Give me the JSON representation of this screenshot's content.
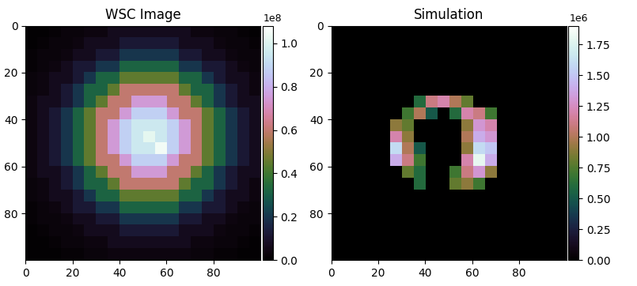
{
  "chart_data": [
    {
      "type": "heatmap",
      "title": "WSC Image",
      "color": "cubehelix",
      "xlim": [
        0,
        100
      ],
      "ylim": [
        100,
        0
      ],
      "xticks": [
        0,
        20,
        40,
        60,
        80
      ],
      "yticks": [
        0,
        20,
        40,
        60,
        80
      ],
      "colorbar_range": [
        0,
        1.08
      ],
      "colorbar_ticks": [
        0.0,
        0.2,
        0.4,
        0.6,
        0.8,
        1.0
      ],
      "colorbar_offset": "1e8",
      "cells": [
        [
          0.01,
          0.01,
          0.02,
          0.03,
          0.03,
          0.04,
          0.04,
          0.07,
          0.07,
          0.07,
          0.07,
          0.07,
          0.07,
          0.07,
          0.04,
          0.04,
          0.03,
          0.03,
          0.02,
          0.01
        ],
        [
          0.01,
          0.02,
          0.03,
          0.03,
          0.04,
          0.07,
          0.07,
          0.07,
          0.12,
          0.12,
          0.12,
          0.12,
          0.12,
          0.07,
          0.07,
          0.07,
          0.04,
          0.03,
          0.03,
          0.02
        ],
        [
          0.02,
          0.03,
          0.03,
          0.04,
          0.07,
          0.07,
          0.12,
          0.12,
          0.2,
          0.2,
          0.2,
          0.2,
          0.2,
          0.12,
          0.12,
          0.07,
          0.07,
          0.04,
          0.03,
          0.03
        ],
        [
          0.02,
          0.03,
          0.04,
          0.07,
          0.12,
          0.12,
          0.2,
          0.2,
          0.32,
          0.32,
          0.32,
          0.32,
          0.32,
          0.2,
          0.2,
          0.12,
          0.12,
          0.07,
          0.04,
          0.03
        ],
        [
          0.03,
          0.04,
          0.07,
          0.07,
          0.12,
          0.2,
          0.32,
          0.32,
          0.45,
          0.45,
          0.45,
          0.45,
          0.45,
          0.32,
          0.32,
          0.2,
          0.12,
          0.07,
          0.07,
          0.04
        ],
        [
          0.03,
          0.04,
          0.07,
          0.12,
          0.2,
          0.32,
          0.32,
          0.45,
          0.6,
          0.6,
          0.6,
          0.6,
          0.6,
          0.45,
          0.32,
          0.32,
          0.2,
          0.12,
          0.07,
          0.04
        ],
        [
          0.04,
          0.07,
          0.07,
          0.12,
          0.2,
          0.32,
          0.45,
          0.6,
          0.6,
          0.75,
          0.75,
          0.75,
          0.6,
          0.6,
          0.45,
          0.32,
          0.2,
          0.12,
          0.07,
          0.07
        ],
        [
          0.04,
          0.07,
          0.12,
          0.2,
          0.32,
          0.45,
          0.6,
          0.6,
          0.75,
          0.88,
          0.88,
          0.88,
          0.75,
          0.6,
          0.6,
          0.45,
          0.32,
          0.2,
          0.12,
          0.07
        ],
        [
          0.04,
          0.07,
          0.12,
          0.2,
          0.32,
          0.45,
          0.6,
          0.75,
          0.88,
          0.95,
          0.95,
          0.95,
          0.88,
          0.75,
          0.6,
          0.45,
          0.32,
          0.2,
          0.12,
          0.07
        ],
        [
          0.04,
          0.07,
          0.12,
          0.2,
          0.32,
          0.45,
          0.6,
          0.75,
          0.88,
          0.95,
          1.02,
          0.95,
          0.88,
          0.75,
          0.6,
          0.45,
          0.32,
          0.2,
          0.12,
          0.07
        ],
        [
          0.04,
          0.07,
          0.12,
          0.2,
          0.32,
          0.45,
          0.6,
          0.75,
          0.88,
          0.95,
          0.95,
          1.05,
          0.88,
          0.75,
          0.6,
          0.45,
          0.32,
          0.2,
          0.12,
          0.07
        ],
        [
          0.04,
          0.07,
          0.12,
          0.2,
          0.32,
          0.45,
          0.6,
          0.6,
          0.75,
          0.88,
          0.88,
          0.88,
          0.75,
          0.6,
          0.6,
          0.45,
          0.32,
          0.2,
          0.12,
          0.07
        ],
        [
          0.04,
          0.07,
          0.07,
          0.12,
          0.2,
          0.32,
          0.45,
          0.6,
          0.6,
          0.75,
          0.75,
          0.75,
          0.6,
          0.6,
          0.45,
          0.32,
          0.2,
          0.12,
          0.07,
          0.07
        ],
        [
          0.03,
          0.04,
          0.07,
          0.12,
          0.2,
          0.32,
          0.32,
          0.45,
          0.6,
          0.6,
          0.6,
          0.6,
          0.6,
          0.45,
          0.32,
          0.32,
          0.2,
          0.12,
          0.07,
          0.04
        ],
        [
          0.03,
          0.04,
          0.07,
          0.07,
          0.12,
          0.2,
          0.32,
          0.32,
          0.45,
          0.45,
          0.45,
          0.45,
          0.45,
          0.32,
          0.32,
          0.2,
          0.12,
          0.07,
          0.07,
          0.04
        ],
        [
          0.02,
          0.03,
          0.04,
          0.07,
          0.12,
          0.12,
          0.2,
          0.2,
          0.32,
          0.32,
          0.32,
          0.32,
          0.32,
          0.2,
          0.2,
          0.12,
          0.12,
          0.07,
          0.04,
          0.03
        ],
        [
          0.02,
          0.03,
          0.03,
          0.04,
          0.07,
          0.07,
          0.12,
          0.12,
          0.2,
          0.2,
          0.2,
          0.2,
          0.2,
          0.12,
          0.12,
          0.07,
          0.07,
          0.04,
          0.03,
          0.03
        ],
        [
          0.01,
          0.02,
          0.03,
          0.03,
          0.04,
          0.07,
          0.07,
          0.07,
          0.12,
          0.12,
          0.12,
          0.12,
          0.12,
          0.07,
          0.07,
          0.07,
          0.04,
          0.03,
          0.03,
          0.02
        ],
        [
          0.01,
          0.01,
          0.02,
          0.03,
          0.03,
          0.04,
          0.04,
          0.07,
          0.07,
          0.07,
          0.07,
          0.07,
          0.07,
          0.07,
          0.04,
          0.04,
          0.03,
          0.03,
          0.02,
          0.01
        ],
        [
          0.01,
          0.01,
          0.01,
          0.02,
          0.02,
          0.03,
          0.03,
          0.04,
          0.04,
          0.04,
          0.04,
          0.04,
          0.04,
          0.04,
          0.03,
          0.03,
          0.02,
          0.02,
          0.01,
          0.01
        ]
      ]
    },
    {
      "type": "heatmap",
      "title": "Simulation",
      "color": "cubehelix",
      "xlim": [
        0,
        100
      ],
      "ylim": [
        100,
        0
      ],
      "xticks": [
        0,
        20,
        40,
        60,
        80
      ],
      "yticks": [
        0,
        20,
        40,
        60,
        80
      ],
      "colorbar_range": [
        0,
        1.9
      ],
      "colorbar_ticks": [
        {
          "value": 0,
          "label": "0.00"
        },
        0.25,
        {
          "value": 0.5,
          "label": "0.50"
        },
        0.75,
        {
          "value": 1.0,
          "label": "1.00"
        },
        1.25,
        {
          "value": 1.5,
          "label": "1.50"
        },
        1.75
      ],
      "colorbar_offset": "1e6",
      "cells": [
        [
          0,
          0,
          0,
          0,
          0,
          0,
          0,
          0,
          0,
          0,
          0,
          0,
          0,
          0,
          0,
          0,
          0,
          0,
          0,
          0
        ],
        [
          0,
          0,
          0,
          0,
          0,
          0,
          0,
          0,
          0,
          0,
          0,
          0,
          0,
          0,
          0,
          0,
          0,
          0,
          0,
          0
        ],
        [
          0,
          0,
          0,
          0,
          0,
          0,
          0,
          0,
          0,
          0,
          0,
          0,
          0,
          0,
          0,
          0,
          0,
          0,
          0,
          0
        ],
        [
          0,
          0,
          0,
          0,
          0,
          0,
          0,
          0,
          0,
          0,
          0,
          0,
          0,
          0,
          0,
          0,
          0,
          0,
          0,
          0
        ],
        [
          0,
          0,
          0,
          0,
          0,
          0,
          0,
          0,
          0,
          0,
          0,
          0,
          0,
          0,
          0,
          0,
          0,
          0,
          0,
          0
        ],
        [
          0,
          0,
          0,
          0,
          0,
          0,
          0,
          0,
          0,
          0,
          0,
          0,
          0,
          0,
          0,
          0,
          0,
          0,
          0,
          0
        ],
        [
          0,
          0,
          0,
          0,
          0,
          0,
          0,
          0.6,
          1.1,
          1.2,
          1.0,
          0.8,
          0,
          0,
          0,
          0,
          0,
          0,
          0,
          0
        ],
        [
          0,
          0,
          0,
          0,
          0,
          0,
          0.7,
          1.0,
          0.5,
          0,
          0.6,
          1.2,
          1.1,
          0.7,
          0,
          0,
          0,
          0,
          0,
          0
        ],
        [
          0,
          0,
          0,
          0,
          0,
          0.9,
          0.8,
          0,
          0,
          0,
          0,
          0.9,
          1.3,
          1.2,
          0,
          0,
          0,
          0,
          0,
          0
        ],
        [
          0,
          0,
          0,
          0,
          0,
          1.2,
          0.9,
          0,
          0,
          0,
          0,
          1.0,
          1.4,
          1.3,
          0,
          0,
          0,
          0,
          0,
          0
        ],
        [
          0,
          0,
          0,
          0,
          0,
          1.6,
          1.0,
          0.5,
          0,
          0,
          0,
          0.9,
          1.6,
          1.5,
          0,
          0,
          0,
          0,
          0,
          0
        ],
        [
          0,
          0,
          0,
          0,
          0,
          1.4,
          1.1,
          0.7,
          0,
          0,
          0,
          1.2,
          1.8,
          1.4,
          0,
          0,
          0,
          0,
          0,
          0
        ],
        [
          0,
          0,
          0,
          0,
          0,
          0,
          0.8,
          0.6,
          0,
          0,
          0.7,
          1.1,
          1.3,
          0.9,
          0,
          0,
          0,
          0,
          0,
          0
        ],
        [
          0,
          0,
          0,
          0,
          0,
          0,
          0,
          0.6,
          0,
          0,
          0.8,
          0.9,
          0.7,
          0,
          0,
          0,
          0,
          0,
          0,
          0
        ],
        [
          0,
          0,
          0,
          0,
          0,
          0,
          0,
          0,
          0,
          0,
          0,
          0,
          0,
          0,
          0,
          0,
          0,
          0,
          0,
          0
        ],
        [
          0,
          0,
          0,
          0,
          0,
          0,
          0,
          0,
          0,
          0,
          0,
          0,
          0,
          0,
          0,
          0,
          0,
          0,
          0,
          0
        ],
        [
          0,
          0,
          0,
          0,
          0,
          0,
          0,
          0,
          0,
          0,
          0,
          0,
          0,
          0,
          0,
          0,
          0,
          0,
          0,
          0
        ],
        [
          0,
          0,
          0,
          0,
          0,
          0,
          0,
          0,
          0,
          0,
          0,
          0,
          0,
          0,
          0,
          0,
          0,
          0,
          0,
          0
        ],
        [
          0,
          0,
          0,
          0,
          0,
          0,
          0,
          0,
          0,
          0,
          0,
          0,
          0,
          0,
          0,
          0,
          0,
          0,
          0,
          0
        ],
        [
          0,
          0,
          0,
          0,
          0,
          0,
          0,
          0,
          0,
          0,
          0,
          0,
          0,
          0,
          0,
          0,
          0,
          0,
          0,
          0
        ]
      ]
    }
  ]
}
